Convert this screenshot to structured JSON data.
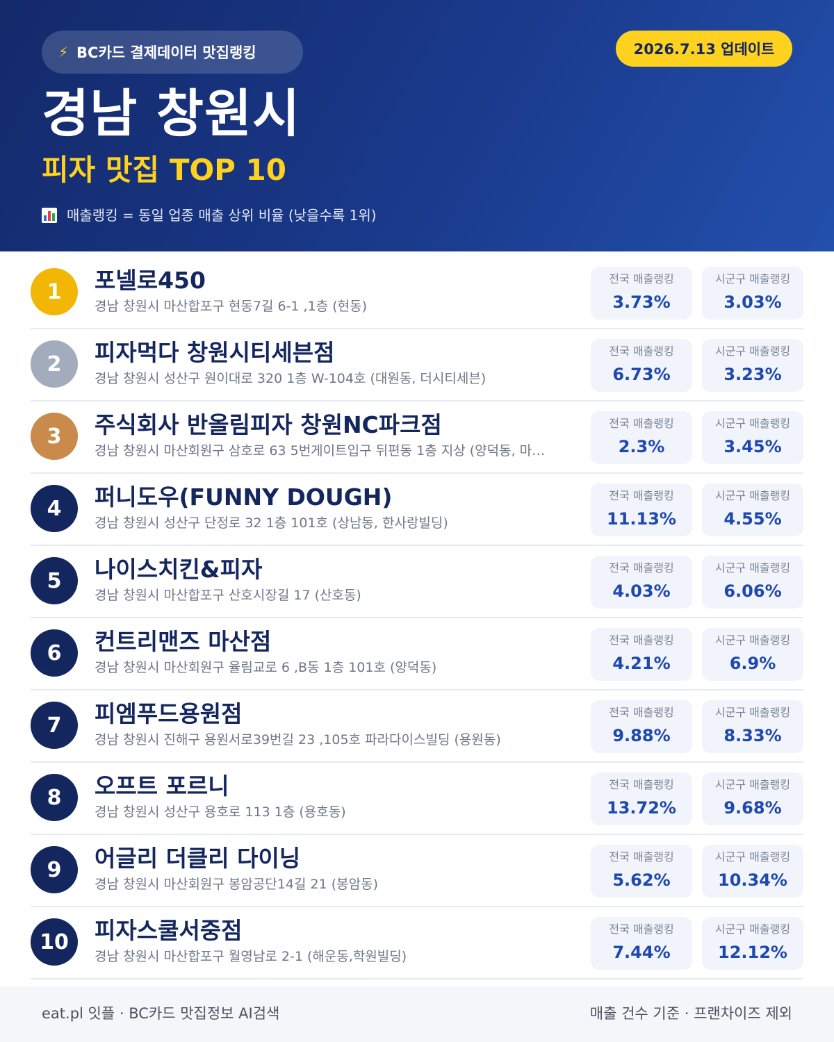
{
  "header": {
    "pill_label": "BC카드 결제데이터 맛집랭킹",
    "update_label": "2026.7.13 업데이트",
    "title": "경남 창원시",
    "subtitle": "피자 맛집 TOP 10",
    "note": "매출랭킹 = 동일 업종 매출 상위 비율 (낮을수록 1위)",
    "accent_color": "#ffd21f"
  },
  "labels": {
    "national": "전국 매출랭킹",
    "district": "시군구 매출랭킹"
  },
  "restaurants": [
    {
      "rank": "1",
      "name": "포넬로450",
      "address": "경남 창원시 마산합포구 현동7길 6-1 ,1층 (현동)",
      "national": "3.73%",
      "district": "3.03%",
      "badge_color": "#f2b705"
    },
    {
      "rank": "2",
      "name": "피자먹다 창원시티세븐점",
      "address": "경남 창원시 성산구 원이대로 320 1층 W-104호 (대원동, 더시티세븐)",
      "national": "6.73%",
      "district": "3.23%",
      "badge_color": "#a3acbd"
    },
    {
      "rank": "3",
      "name": "주식회사 반올림피자 창원NC파크점",
      "address": "경남 창원시 마산회원구 삼호로 63 5번게이트입구 뒤편동 1층 지상 (양덕동, 마…",
      "national": "2.3%",
      "district": "3.45%",
      "badge_color": "#c98a4b"
    },
    {
      "rank": "4",
      "name": "퍼니도우(FUNNY DOUGH)",
      "address": "경남 창원시 성산구 단정로 32 1층 101호 (상남동, 한사랑빌딩)",
      "national": "11.13%",
      "district": "4.55%",
      "badge_color": "#14265e"
    },
    {
      "rank": "5",
      "name": "나이스치킨&피자",
      "address": "경남 창원시 마산합포구 산호시장길 17 (산호동)",
      "national": "4.03%",
      "district": "6.06%",
      "badge_color": "#14265e"
    },
    {
      "rank": "6",
      "name": "컨트리맨즈 마산점",
      "address": "경남 창원시 마산회원구 율림교로 6 ,B동 1층 101호 (양덕동)",
      "national": "4.21%",
      "district": "6.9%",
      "badge_color": "#14265e"
    },
    {
      "rank": "7",
      "name": "피엠푸드용원점",
      "address": "경남 창원시 진해구 용원서로39번길 23 ,105호 파라다이스빌딩 (용원동)",
      "national": "9.88%",
      "district": "8.33%",
      "badge_color": "#14265e"
    },
    {
      "rank": "8",
      "name": "오프트 포르니",
      "address": "경남 창원시 성산구 용호로 113 1층 (용호동)",
      "national": "13.72%",
      "district": "9.68%",
      "badge_color": "#14265e"
    },
    {
      "rank": "9",
      "name": "어글리 더클리 다이닝",
      "address": "경남 창원시 마산회원구 봉암공단14길 21 (봉암동)",
      "national": "5.62%",
      "district": "10.34%",
      "badge_color": "#14265e"
    },
    {
      "rank": "10",
      "name": "피자스쿨서중점",
      "address": "경남 창원시 마산합포구 월영남로 2-1 (해운동,학원빌딩)",
      "national": "7.44%",
      "district": "12.12%",
      "badge_color": "#14265e"
    }
  ],
  "footer": {
    "left": "eat.pl 잇플 · BC카드 맛집정보 AI검색",
    "right": "매출 건수 기준 · 프랜차이즈 제외"
  }
}
